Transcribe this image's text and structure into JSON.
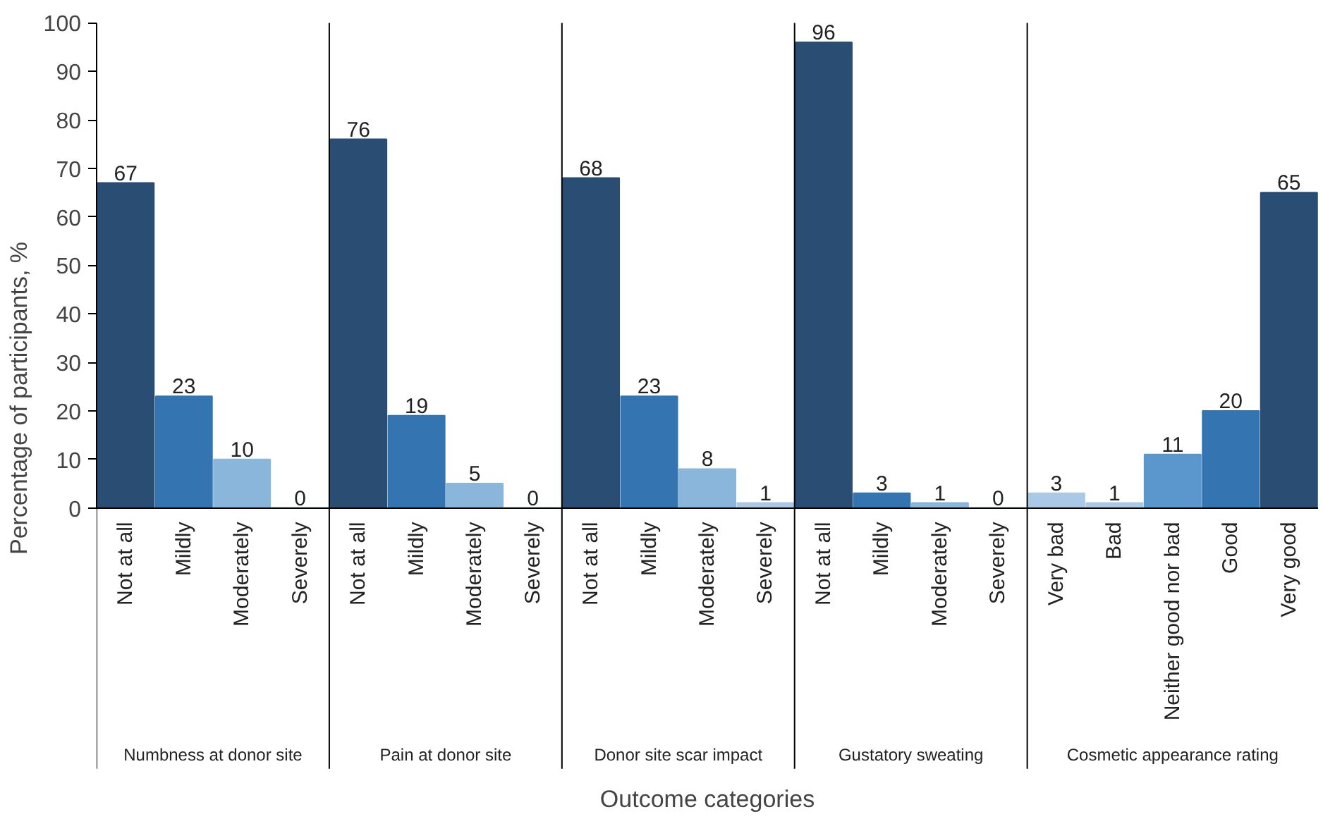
{
  "chart_data": {
    "type": "bar",
    "categories": [
      "Not at all",
      "Mildly",
      "Moderately",
      "Severely",
      "Not at all",
      "Mildly",
      "Moderately",
      "Severely",
      "Not at all",
      "Mildly",
      "Moderately",
      "Severely",
      "Not at all",
      "Mildly",
      "Moderately",
      "Severely",
      "Very bad",
      "Bad",
      "Neither good nor bad",
      "Good",
      "Very good"
    ],
    "values": [
      67,
      23,
      10,
      0,
      76,
      19,
      5,
      0,
      68,
      23,
      8,
      1,
      96,
      3,
      1,
      0,
      3,
      1,
      11,
      20,
      65
    ],
    "colors": [
      "#2a4d74",
      "#3474b0",
      "#8ab6dc",
      "#a9c9e6",
      "#2a4d74",
      "#3474b0",
      "#8ab6dc",
      "#a9c9e6",
      "#2a4d74",
      "#3474b0",
      "#8ab6dc",
      "#a9c9e6",
      "#2a4d74",
      "#3474b0",
      "#8ab6dc",
      "#a9c9e6",
      "#a9c9e6",
      "#a9c9e6",
      "#5b96cc",
      "#3474b0",
      "#2a4d74"
    ],
    "xlabel": "Outcome categories",
    "ylabel": "Percentage of participants, %",
    "ylim": [
      0,
      100
    ],
    "yticks": [
      0,
      10,
      20,
      30,
      40,
      50,
      60,
      70,
      80,
      90,
      100
    ],
    "data_labels": true,
    "grid": false,
    "annotations": [
      "Numbness at donor site",
      "Pain at donor site",
      "Donor site scar impact",
      "Gustatory sweating",
      "Cosmetic appearance rating"
    ]
  }
}
